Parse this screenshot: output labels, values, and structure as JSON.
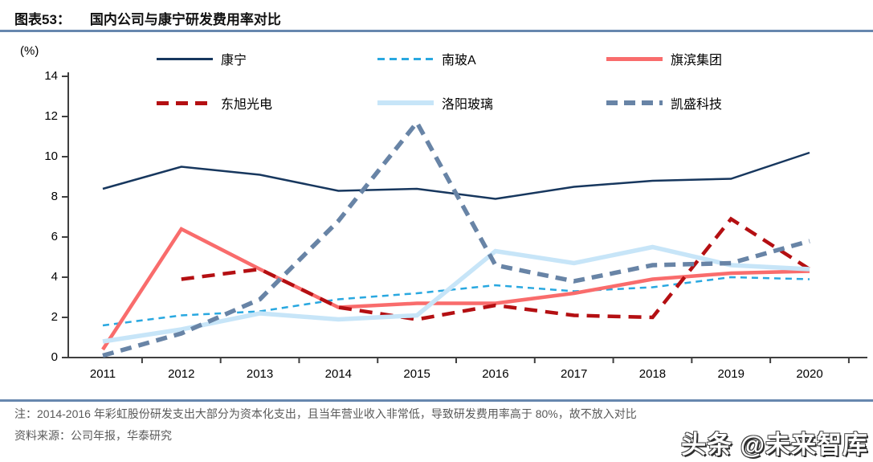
{
  "header": {
    "label": "图表53：",
    "title": "国内公司与康宁研发费用率对比"
  },
  "chart_data": {
    "type": "line",
    "unit_label": "(%)",
    "x": [
      "2011",
      "2012",
      "2013",
      "2014",
      "2015",
      "2016",
      "2017",
      "2018",
      "2019",
      "2020"
    ],
    "ylim": [
      0,
      14
    ],
    "yticks": [
      0,
      2,
      4,
      6,
      8,
      10,
      12,
      14
    ],
    "grid": false,
    "legend_position": "top-inside",
    "axis_color": "#3F3F3F",
    "series": [
      {
        "name": "康宁",
        "color": "#17375E",
        "style": "solid",
        "width": 2.5,
        "values": [
          8.4,
          9.5,
          9.1,
          8.3,
          8.4,
          7.9,
          8.5,
          8.8,
          8.9,
          10.2
        ]
      },
      {
        "name": "南玻A",
        "color": "#29A8E0",
        "style": "dashed",
        "width": 2.5,
        "values": [
          1.6,
          2.1,
          2.3,
          2.9,
          3.2,
          3.6,
          3.3,
          3.5,
          4.0,
          3.9
        ]
      },
      {
        "name": "旗滨集团",
        "color": "#F96C6C",
        "style": "solid",
        "width": 4.5,
        "values": [
          0.4,
          6.4,
          4.4,
          2.5,
          2.7,
          2.7,
          3.2,
          3.9,
          4.2,
          4.3
        ]
      },
      {
        "name": "东旭光电",
        "color": "#B40F12",
        "style": "dashed",
        "width": 4.5,
        "values": [
          null,
          3.9,
          4.4,
          2.5,
          1.9,
          2.6,
          2.1,
          2.0,
          6.9,
          4.4
        ]
      },
      {
        "name": "洛阳玻璃",
        "color": "#C7E5F8",
        "style": "solid",
        "width": 5.5,
        "values": [
          0.8,
          1.4,
          2.2,
          1.9,
          2.1,
          5.3,
          4.7,
          5.5,
          4.6,
          4.4
        ]
      },
      {
        "name": "凯盛科技",
        "color": "#6884A6",
        "style": "dashed",
        "width": 5.5,
        "values": [
          0.1,
          1.2,
          2.9,
          6.8,
          11.7,
          4.6,
          3.8,
          4.6,
          4.7,
          5.8
        ]
      }
    ]
  },
  "footnote": {
    "note": "注：2014-2016 年彩虹股份研发支出大部分为资本化支出，且当年营业收入非常低，导致研发费用率高于 80%，故不放入对比",
    "source": "资料来源：公司年报，华泰研究"
  },
  "watermark": "头条 @未来智库",
  "colors": {
    "rule": "#6787AE",
    "note_text": "#595959",
    "axis": "#3F3F3F"
  }
}
